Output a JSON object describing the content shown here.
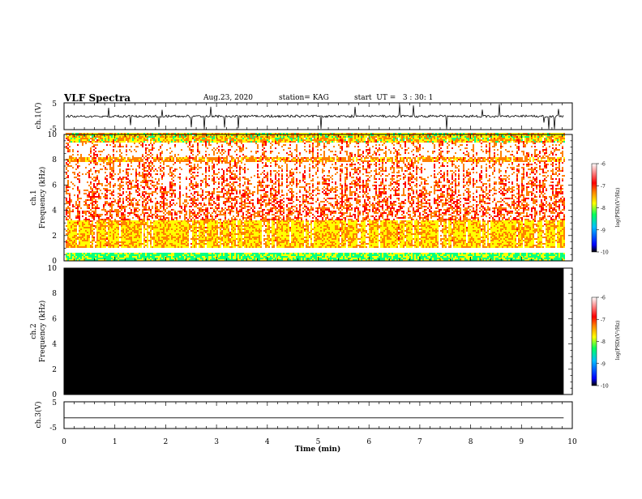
{
  "header": {
    "title": "VLF Spectra",
    "date": "Aug.23, 2020",
    "station": "station= KAG",
    "start": "start  UT =   3 : 30: 1"
  },
  "chart_data": [
    {
      "type": "line",
      "panel": "ch1-waveform",
      "ylabel": "ch.1(V)",
      "ylim": [
        -5,
        5
      ],
      "yticks": [
        "5",
        "-5"
      ],
      "xlim": [
        0,
        10
      ],
      "description_values": {
        "baseline_v": 0,
        "trace_end_min": 9.83
      }
    },
    {
      "type": "heatmap",
      "panel": "ch1-spectrogram",
      "ylabel": "ch.1\nFrequency (kHz)",
      "ylim": [
        0,
        10
      ],
      "yticks": [
        "0",
        "2",
        "4",
        "6",
        "8",
        "10"
      ],
      "xlim": [
        0,
        10
      ],
      "trace_end_min": 9.83,
      "colorbar": {
        "label": "log(PSD)(V²/Hz)",
        "range": [
          -10,
          -6
        ],
        "ticks": [
          "-6",
          "-7",
          "-8",
          "-9",
          "-10"
        ]
      }
    },
    {
      "type": "heatmap",
      "panel": "ch2-spectrogram",
      "ylabel": "ch.2\nFrequency (kHz)",
      "ylim": [
        0,
        10
      ],
      "yticks": [
        "0",
        "2",
        "4",
        "6",
        "8",
        "10"
      ],
      "xlim": [
        0,
        10
      ],
      "trace_end_min": 9.83,
      "fill": "black",
      "colorbar": {
        "label": "log(PSD)(V²/Hz)",
        "range": [
          -10,
          -6
        ],
        "ticks": [
          "-6",
          "-7",
          "-8",
          "-9",
          "-10"
        ]
      }
    },
    {
      "type": "line",
      "panel": "ch3-waveform",
      "ylabel": "ch.3(V)",
      "ylim": [
        -5,
        5
      ],
      "yticks": [
        "5",
        "-5"
      ],
      "xlim": [
        0,
        10
      ],
      "xticks": [
        "0",
        "1",
        "2",
        "3",
        "4",
        "5",
        "6",
        "7",
        "8",
        "9",
        "10"
      ],
      "xlabel": "Time (min)",
      "trace_value_v": -1,
      "trace_end_min": 9.83
    }
  ],
  "colors": {
    "colormap": [
      "#0000ff",
      "#00a0ff",
      "#00ff80",
      "#ffff00",
      "#ff8000",
      "#ff0000",
      "#ffffff"
    ],
    "axis": "#000000"
  }
}
